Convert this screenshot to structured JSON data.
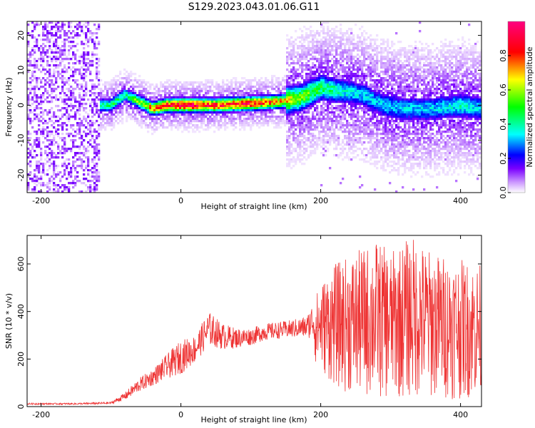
{
  "title": "S129.2023.043.01.06.G11",
  "chart_data": [
    {
      "type": "heatmap",
      "xlabel": "Height of straight line (km)",
      "ylabel": "Frequency (Hz)",
      "xlim": [
        -220,
        430
      ],
      "ylim": [
        -25,
        24
      ],
      "xticks": [
        -200,
        0,
        200,
        400
      ],
      "yticks": [
        -20,
        -10,
        0,
        10,
        20
      ],
      "colorbar": {
        "label": "Normalized spectral amplitude",
        "range": [
          0,
          1
        ],
        "ticks": [
          "0.0",
          "0.2",
          "0.4",
          "0.6",
          "0.8"
        ],
        "colors": [
          "#ffffff",
          "#cc99ff",
          "#7a00ff",
          "#0000ff",
          "#00ffff",
          "#00ff00",
          "#ffff00",
          "#ff0000",
          "#ff0080"
        ]
      },
      "ridge": {
        "x": [
          -120,
          -100,
          -80,
          -60,
          -50,
          -40,
          -20,
          0,
          50,
          100,
          140,
          170,
          200,
          230,
          260,
          290,
          320,
          360,
          400,
          430
        ],
        "center_hz": [
          0,
          0,
          3,
          1,
          0,
          -1,
          0,
          0,
          0,
          0.5,
          1,
          2,
          5,
          4,
          3,
          0,
          -1,
          -1,
          0,
          -1
        ],
        "peak_amplitude": [
          0.4,
          0.5,
          0.45,
          0.6,
          0.7,
          0.8,
          0.95,
          1.0,
          0.9,
          0.95,
          0.8,
          0.6,
          0.5,
          0.4,
          0.35,
          0.35,
          0.35,
          0.35,
          0.4,
          0.35
        ]
      },
      "noise_region": {
        "x_range": [
          -220,
          -115
        ],
        "freq_range": [
          -24,
          24
        ]
      }
    },
    {
      "type": "line",
      "xlabel": "Height of straight line (km)",
      "ylabel": "SNR (10 * v/v)",
      "xlim": [
        -220,
        430
      ],
      "ylim": [
        0,
        720
      ],
      "xticks": [
        -200,
        0,
        200,
        400
      ],
      "yticks": [
        0,
        200,
        400,
        600
      ],
      "color": "#ee3333",
      "envelope": {
        "x": [
          -220,
          -150,
          -100,
          -80,
          -60,
          -40,
          -20,
          0,
          20,
          40,
          60,
          80,
          100,
          120,
          150,
          180,
          200,
          220,
          250,
          280,
          300,
          330,
          360,
          400,
          430
        ],
        "min": [
          5,
          5,
          5,
          10,
          30,
          50,
          60,
          60,
          120,
          180,
          180,
          200,
          220,
          240,
          250,
          240,
          150,
          80,
          40,
          30,
          30,
          30,
          30,
          30,
          30
        ],
        "max": [
          15,
          15,
          20,
          60,
          120,
          160,
          220,
          280,
          300,
          400,
          350,
          330,
          330,
          350,
          360,
          380,
          520,
          600,
          650,
          700,
          650,
          720,
          650,
          620,
          600
        ]
      }
    }
  ]
}
